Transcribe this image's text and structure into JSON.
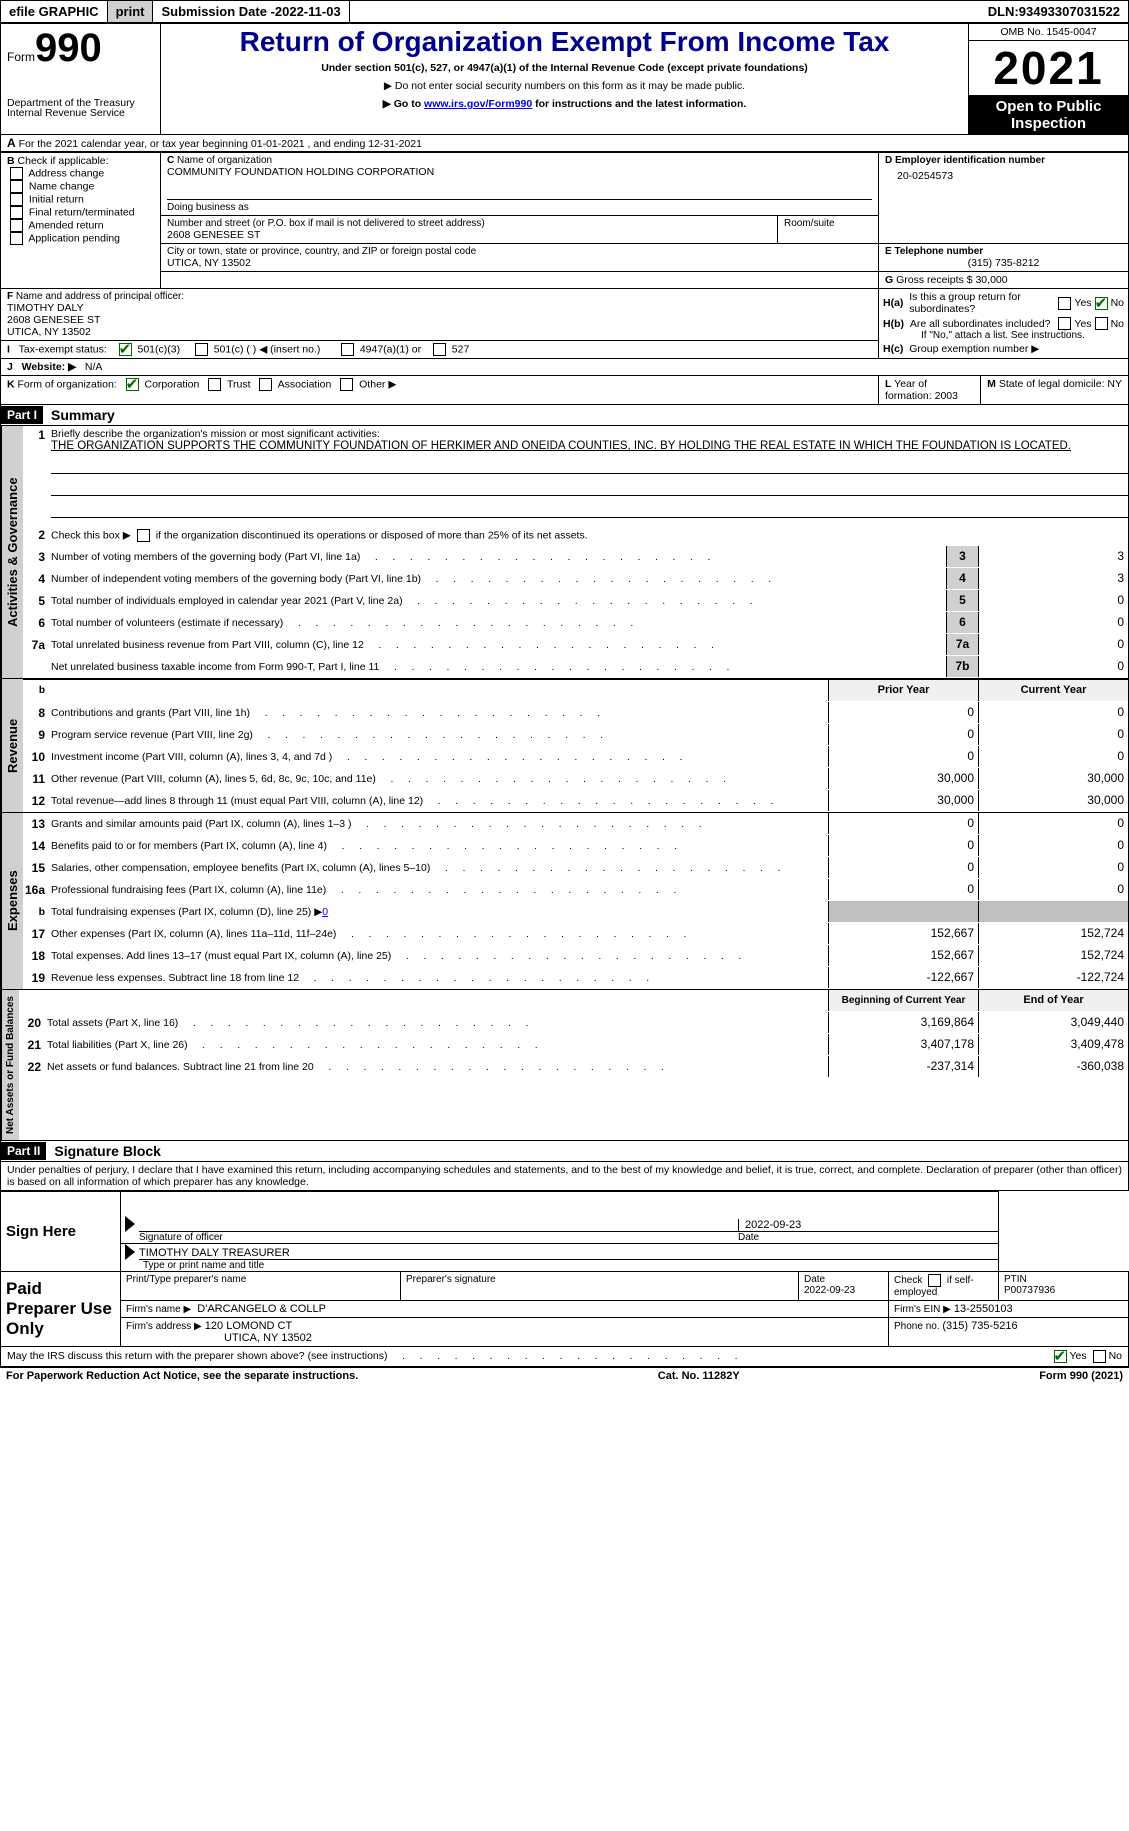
{
  "topbar": {
    "efile": "efile GRAPHIC",
    "print": "print",
    "subdate_label": "Submission Date - ",
    "subdate": "2022-11-03",
    "dln_label": "DLN: ",
    "dln": "93493307031522"
  },
  "header": {
    "form_word": "Form",
    "form_num": "990",
    "title": "Return of Organization Exempt From Income Tax",
    "subtitle": "Under section 501(c), 527, or 4947(a)(1) of the Internal Revenue Code (except private foundations)",
    "note1": "Do not enter social security numbers on this form as it may be made public.",
    "note2_pre": "Go to ",
    "note2_link": "www.irs.gov/Form990",
    "note2_post": " for instructions and the latest information.",
    "omb": "OMB No. 1545-0047",
    "year": "2021",
    "open": "Open to Public Inspection",
    "dept": "Department of the Treasury",
    "irs": "Internal Revenue Service"
  },
  "sectionA": {
    "line": "For the 2021 calendar year, or tax year beginning 01-01-2021     , and ending 12-31-2021",
    "B": "Check if applicable:",
    "b_items": [
      "Address change",
      "Name change",
      "Initial return",
      "Final return/terminated",
      "Amended return",
      "Application pending"
    ],
    "C_label": "Name of organization",
    "org_name": "COMMUNITY FOUNDATION HOLDING CORPORATION",
    "dba": "Doing business as",
    "street_label": "Number and street (or P.O. box if mail is not delivered to street address)",
    "room_label": "Room/suite",
    "street": "2608 GENESEE ST",
    "city_label": "City or town, state or province, country, and ZIP or foreign postal code",
    "city": "UTICA, NY  13502",
    "D_label": "Employer identification number",
    "ein": "20-0254573",
    "E_label": "Telephone number",
    "phone": "(315) 735-8212",
    "G_label": "Gross receipts $",
    "gross": "30,000",
    "F_label": "Name and address of principal officer:",
    "officer_name": "TIMOTHY DALY",
    "officer_addr1": "2608 GENESEE ST",
    "officer_addr2": "UTICA, NY  13502",
    "Ha": "Is this a group return for subordinates?",
    "Hb": "Are all subordinates included?",
    "H_note": "If \"No,\" attach a list. See instructions.",
    "Hc": "Group exemption number ▶",
    "yes": "Yes",
    "no": "No",
    "I": "Tax-exempt status:",
    "I_501c3": "501(c)(3)",
    "I_501c": "501(c) (  ) ◀ (insert no.)",
    "I_4947": "4947(a)(1) or",
    "I_527": "527",
    "J": "Website: ▶",
    "website": "N/A",
    "K": "Form of organization:",
    "K_corp": "Corporation",
    "K_trust": "Trust",
    "K_assoc": "Association",
    "K_other": "Other ▶",
    "L": "Year of formation: ",
    "L_val": "2003",
    "M": "State of legal domicile: ",
    "M_val": "NY"
  },
  "part1": {
    "header": "Part I",
    "title": "Summary",
    "q1": "Briefly describe the organization's mission or most significant activities:",
    "mission": "THE ORGANIZATION SUPPORTS THE COMMUNITY FOUNDATION OF HERKIMER AND ONEIDA COUNTIES, INC. BY HOLDING THE REAL ESTATE IN WHICH THE FOUNDATION IS LOCATED.",
    "q2": "Check this box ▶      if the organization discontinued its operations or disposed of more than 25% of its net assets.",
    "lines_act": [
      {
        "n": "3",
        "d": "Number of voting members of the governing body (Part VI, line 1a)",
        "box": "3",
        "v": "3"
      },
      {
        "n": "4",
        "d": "Number of independent voting members of the governing body (Part VI, line 1b)",
        "box": "4",
        "v": "3"
      },
      {
        "n": "5",
        "d": "Total number of individuals employed in calendar year 2021 (Part V, line 2a)",
        "box": "5",
        "v": "0"
      },
      {
        "n": "6",
        "d": "Total number of volunteers (estimate if necessary)",
        "box": "6",
        "v": "0"
      },
      {
        "n": "7a",
        "d": "Total unrelated business revenue from Part VIII, column (C), line 12",
        "box": "7a",
        "v": "0"
      },
      {
        "n": "",
        "d": "Net unrelated business taxable income from Form 990-T, Part I, line 11",
        "box": "7b",
        "v": "0"
      }
    ],
    "prior": "Prior Year",
    "current": "Current Year",
    "lines_rev": [
      {
        "n": "8",
        "d": "Contributions and grants (Part VIII, line 1h)",
        "p": "0",
        "c": "0"
      },
      {
        "n": "9",
        "d": "Program service revenue (Part VIII, line 2g)",
        "p": "0",
        "c": "0"
      },
      {
        "n": "10",
        "d": "Investment income (Part VIII, column (A), lines 3, 4, and 7d )",
        "p": "0",
        "c": "0"
      },
      {
        "n": "11",
        "d": "Other revenue (Part VIII, column (A), lines 5, 6d, 8c, 9c, 10c, and 11e)",
        "p": "30,000",
        "c": "30,000"
      },
      {
        "n": "12",
        "d": "Total revenue—add lines 8 through 11 (must equal Part VIII, column (A), line 12)",
        "p": "30,000",
        "c": "30,000"
      }
    ],
    "lines_exp": [
      {
        "n": "13",
        "d": "Grants and similar amounts paid (Part IX, column (A), lines 1–3 )",
        "p": "0",
        "c": "0"
      },
      {
        "n": "14",
        "d": "Benefits paid to or for members (Part IX, column (A), line 4)",
        "p": "0",
        "c": "0"
      },
      {
        "n": "15",
        "d": "Salaries, other compensation, employee benefits (Part IX, column (A), lines 5–10)",
        "p": "0",
        "c": "0"
      },
      {
        "n": "16a",
        "d": "Professional fundraising fees (Part IX, column (A), line 11e)",
        "p": "0",
        "c": "0"
      }
    ],
    "line_b": "Total fundraising expenses (Part IX, column (D), line 25) ▶",
    "line_b_val": "0",
    "lines_exp2": [
      {
        "n": "17",
        "d": "Other expenses (Part IX, column (A), lines 11a–11d, 11f–24e)",
        "p": "152,667",
        "c": "152,724"
      },
      {
        "n": "18",
        "d": "Total expenses. Add lines 13–17 (must equal Part IX, column (A), line 25)",
        "p": "152,667",
        "c": "152,724"
      },
      {
        "n": "19",
        "d": "Revenue less expenses. Subtract line 18 from line 12",
        "p": "-122,667",
        "c": "-122,724"
      }
    ],
    "begin": "Beginning of Current Year",
    "end": "End of Year",
    "lines_net": [
      {
        "n": "20",
        "d": "Total assets (Part X, line 16)",
        "p": "3,169,864",
        "c": "3,049,440"
      },
      {
        "n": "21",
        "d": "Total liabilities (Part X, line 26)",
        "p": "3,407,178",
        "c": "3,409,478"
      },
      {
        "n": "22",
        "d": "Net assets or fund balances. Subtract line 21 from line 20",
        "p": "-237,314",
        "c": "-360,038"
      }
    ],
    "labels": {
      "act": "Activities & Governance",
      "rev": "Revenue",
      "exp": "Expenses",
      "net": "Net Assets or Fund Balances"
    }
  },
  "part2": {
    "header": "Part II",
    "title": "Signature Block",
    "decl": "Under penalties of perjury, I declare that I have examined this return, including accompanying schedules and statements, and to the best of my knowledge and belief, it is true, correct, and complete. Declaration of preparer (other than officer) is based on all information of which preparer has any knowledge.",
    "sign_here": "Sign Here",
    "sig_officer": "Signature of officer",
    "sig_date": "2022-09-23",
    "sig_name_title": "TIMOTHY DALY TREASURER",
    "sig_name_label": "Type or print name and title",
    "paid": "Paid Preparer Use Only",
    "prep_name_label": "Print/Type preparer's name",
    "prep_sig_label": "Preparer's signature",
    "date_label": "Date",
    "date_val": "2022-09-23",
    "check_label": "Check        if self-employed",
    "ptin_label": "PTIN",
    "ptin": "P00737936",
    "firm_name_label": "Firm's name    ▶",
    "firm_name": "D'ARCANGELO & COLLP",
    "firm_ein_label": "Firm's EIN ▶",
    "firm_ein": "13-2550103",
    "firm_addr_label": "Firm's address ▶",
    "firm_addr1": "120 LOMOND CT",
    "firm_addr2": "UTICA, NY  13502",
    "firm_phone_label": "Phone no. ",
    "firm_phone": "(315) 735-5216",
    "discuss": "May the IRS discuss this return with the preparer shown above? (see instructions)",
    "b_label": "b"
  },
  "footer": {
    "left": "For Paperwork Reduction Act Notice, see the separate instructions.",
    "mid": "Cat. No. 11282Y",
    "right": "Form 990 (2021)"
  }
}
